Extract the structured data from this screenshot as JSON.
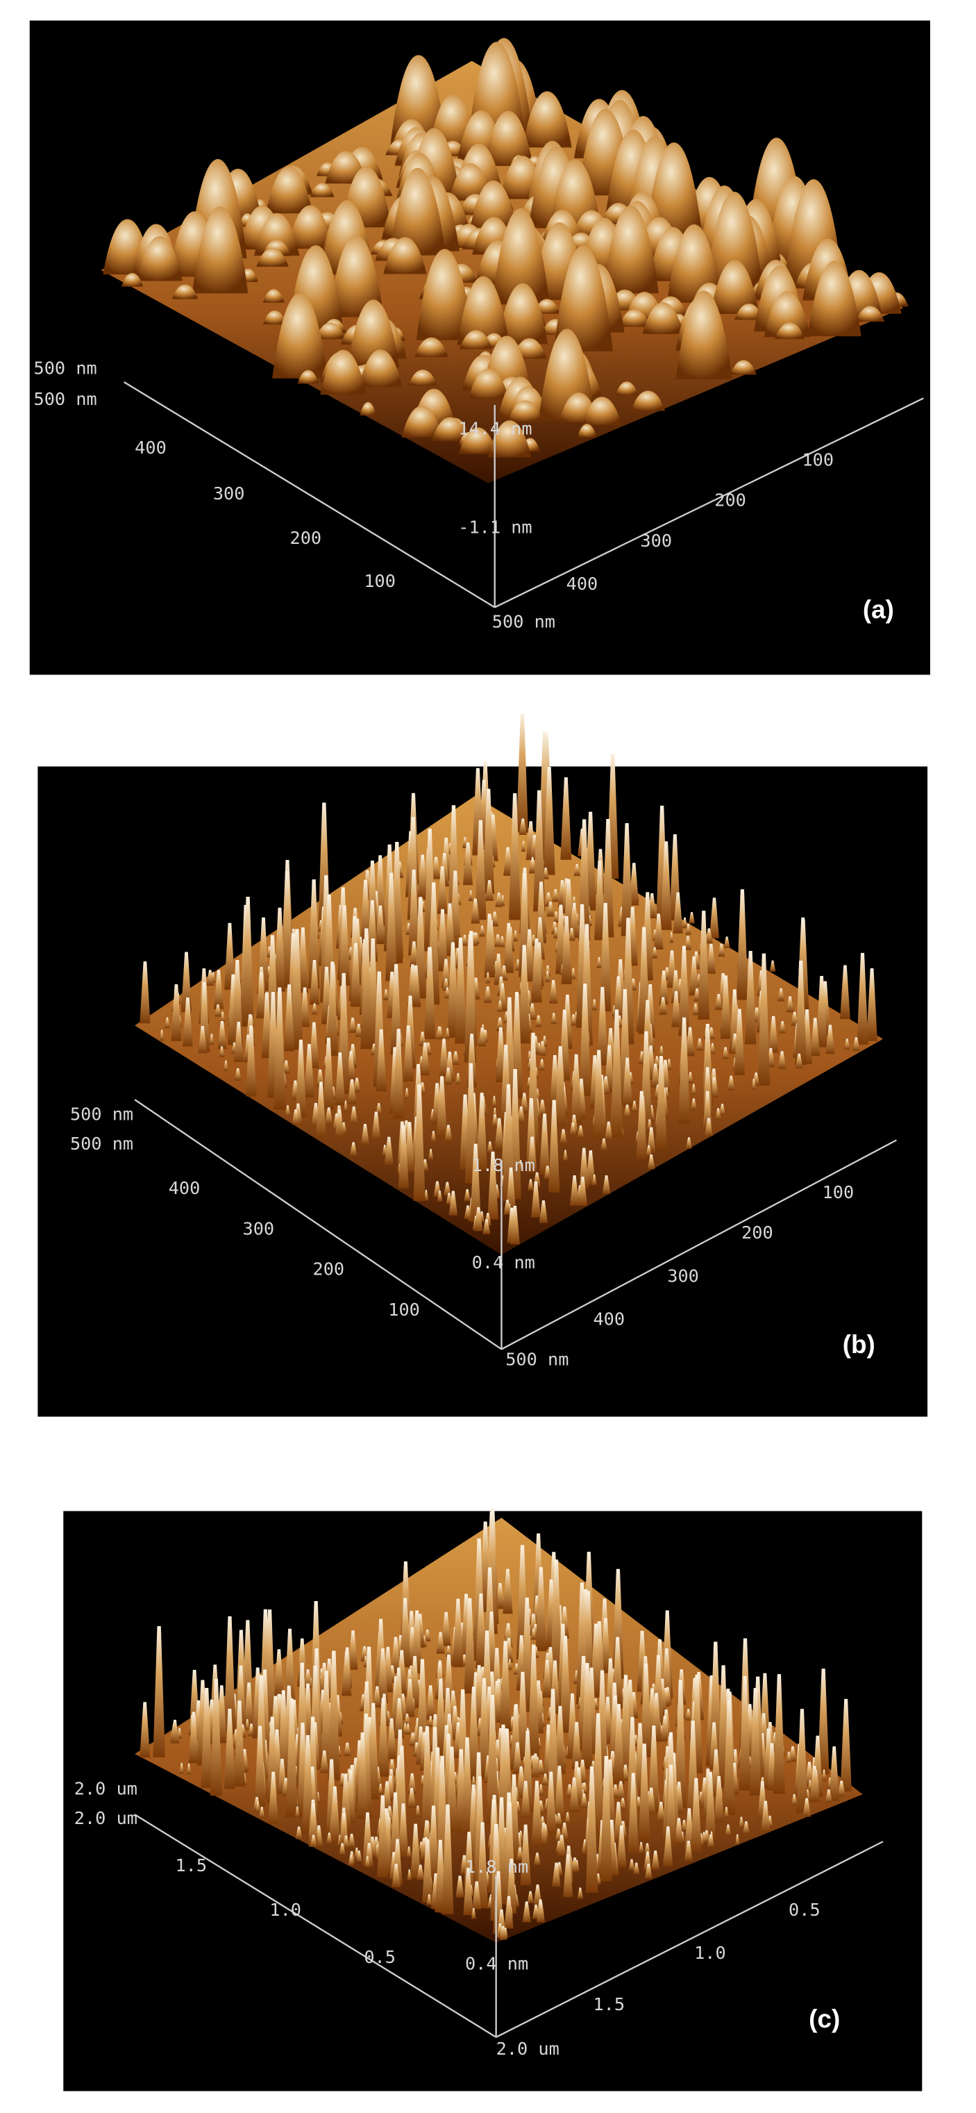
{
  "panels": [
    {
      "label": "(a)",
      "texts": [
        "500 nm",
        "500 nm",
        "400",
        "300",
        "200",
        "100",
        "14.4 nm",
        "-1.1 nm",
        "500 nm",
        "400",
        "300",
        "200",
        "100"
      ]
    },
    {
      "label": "(b)",
      "texts": [
        "500 nm",
        "500 nm",
        "400",
        "300",
        "200",
        "100",
        "1.8 nm",
        "0.4 nm",
        "500 nm",
        "400",
        "300",
        "200",
        "100"
      ]
    },
    {
      "label": "(c)",
      "texts": [
        "2.0 um",
        "2.0 um",
        "1.5",
        "1.0",
        "0.5",
        "1.8 nm",
        "0.4 nm",
        "2.0 um",
        "1.5",
        "1.0",
        "0.5"
      ]
    }
  ]
}
